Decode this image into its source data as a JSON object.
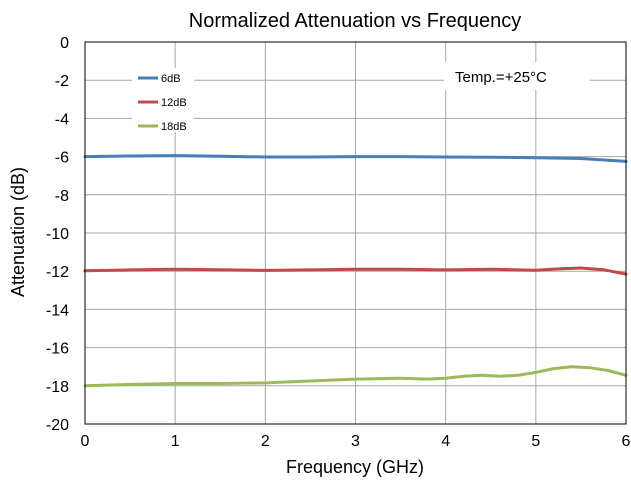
{
  "chart_data": {
    "type": "line",
    "title": "Normalized Attenuation vs Frequency",
    "xlabel": "Frequency (GHz)",
    "ylabel": "Attenuation (dB)",
    "xlim": [
      0,
      6
    ],
    "ylim": [
      -20,
      0
    ],
    "x_ticks": [
      "0",
      "1",
      "2",
      "3",
      "4",
      "5",
      "6"
    ],
    "y_ticks": [
      "0",
      "-2",
      "-4",
      "-6",
      "-8",
      "-10",
      "-12",
      "-14",
      "-16",
      "-18",
      "-20"
    ],
    "grid": true,
    "legend_position": "top-left",
    "annotation": "Temp.=+25°C",
    "series": [
      {
        "name": "6dB",
        "color": "#4a7ebb",
        "x": [
          0,
          0.5,
          1,
          1.5,
          2,
          2.5,
          3,
          3.5,
          4,
          4.5,
          5,
          5.5,
          6
        ],
        "values": [
          -6.0,
          -5.97,
          -5.95,
          -5.98,
          -6.02,
          -6.02,
          -6.0,
          -6.0,
          -6.02,
          -6.03,
          -6.06,
          -6.1,
          -6.25
        ]
      },
      {
        "name": "12dB",
        "color": "#be4b48",
        "x": [
          0,
          0.5,
          1,
          1.5,
          2,
          2.5,
          3,
          3.5,
          4,
          4.5,
          5,
          5.25,
          5.5,
          5.75,
          6
        ],
        "values": [
          -11.98,
          -11.93,
          -11.9,
          -11.92,
          -11.96,
          -11.93,
          -11.9,
          -11.9,
          -11.93,
          -11.9,
          -11.95,
          -11.88,
          -11.83,
          -11.92,
          -12.15
        ]
      },
      {
        "name": "18dB",
        "color": "#9bbb59",
        "x": [
          0,
          0.5,
          1,
          1.5,
          2,
          2.5,
          3,
          3.5,
          3.8,
          4,
          4.2,
          4.4,
          4.6,
          4.8,
          5,
          5.2,
          5.4,
          5.6,
          5.8,
          6
        ],
        "values": [
          -18.0,
          -17.93,
          -17.88,
          -17.88,
          -17.85,
          -17.75,
          -17.65,
          -17.6,
          -17.65,
          -17.6,
          -17.5,
          -17.45,
          -17.5,
          -17.45,
          -17.3,
          -17.1,
          -17.0,
          -17.05,
          -17.2,
          -17.45
        ]
      }
    ]
  }
}
